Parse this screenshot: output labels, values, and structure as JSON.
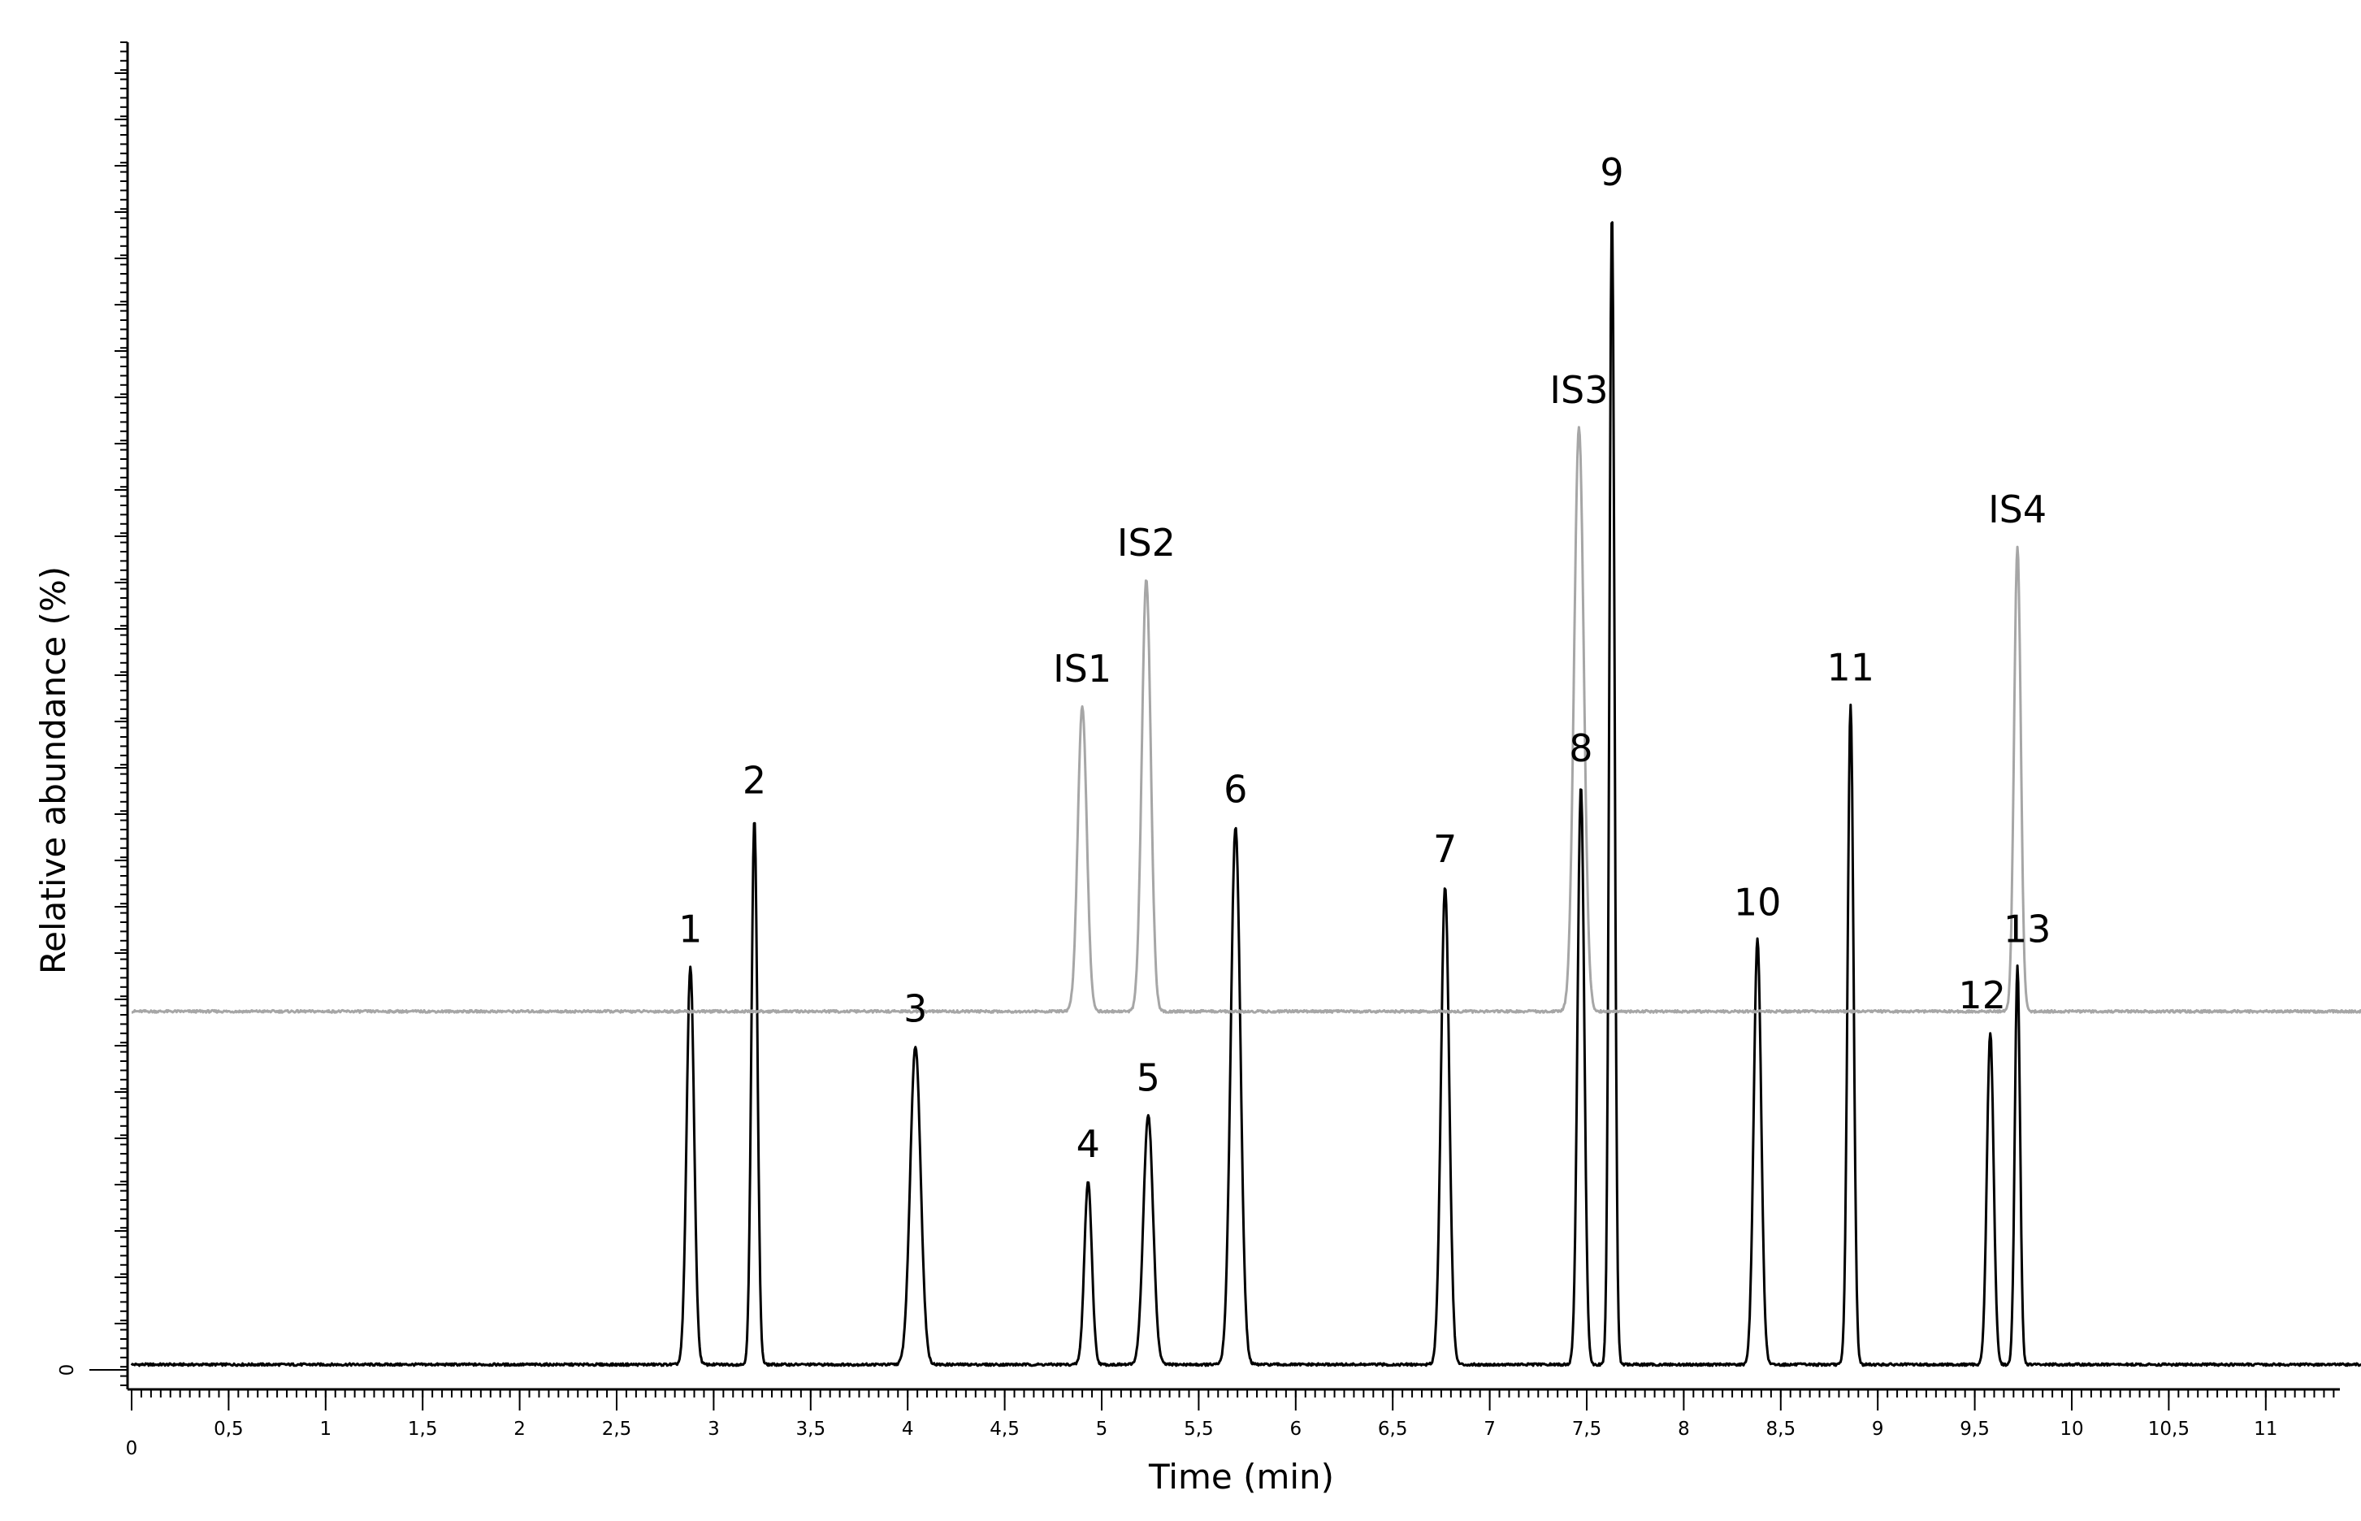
{
  "chart_data": {
    "type": "line",
    "title": "",
    "xlabel": "Time (min)",
    "ylabel": "Relative abundance (%)",
    "xlim": [
      0,
      11.5
    ],
    "ylim": [
      0,
      1
    ],
    "x_tick_labels": [
      "0",
      "0,5",
      "1",
      "1,5",
      "2",
      "2,5",
      "3",
      "3,5",
      "4",
      "4,5",
      "5",
      "5,5",
      "6",
      "6,5",
      "7",
      "7,5",
      "8",
      "8,5",
      "9",
      "9,5",
      "10",
      "10,5",
      "11"
    ],
    "y_tick_labels": [
      "0"
    ],
    "grid": false,
    "legend": "none",
    "series": [
      {
        "color": "#000000",
        "baseline": 0.004,
        "peaks": [
          {
            "label": "1",
            "rt": 2.88,
            "height": 0.3,
            "width": 0.05
          },
          {
            "label": "2",
            "rt": 3.21,
            "height": 0.412,
            "width": 0.04
          },
          {
            "label": "3",
            "rt": 4.04,
            "height": 0.24,
            "width": 0.07
          },
          {
            "label": "4",
            "rt": 4.93,
            "height": 0.138,
            "width": 0.05
          },
          {
            "label": "5",
            "rt": 5.24,
            "height": 0.188,
            "width": 0.065
          },
          {
            "label": "6",
            "rt": 5.69,
            "height": 0.405,
            "width": 0.065
          },
          {
            "label": "7",
            "rt": 6.77,
            "height": 0.36,
            "width": 0.055
          },
          {
            "label": "8",
            "rt": 7.47,
            "height": 0.436,
            "width": 0.045
          },
          {
            "label": "9",
            "rt": 7.63,
            "height": 0.87,
            "width": 0.035
          },
          {
            "label": "10",
            "rt": 8.38,
            "height": 0.32,
            "width": 0.05
          },
          {
            "label": "11",
            "rt": 8.86,
            "height": 0.497,
            "width": 0.04
          },
          {
            "label": "12",
            "rt": 9.58,
            "height": 0.25,
            "width": 0.045
          },
          {
            "label": "13",
            "rt": 9.72,
            "height": 0.3,
            "width": 0.035
          }
        ]
      },
      {
        "color": "#a6a6a6",
        "baseline": 0.27,
        "peaks": [
          {
            "label": "IS1",
            "rt": 4.9,
            "height": 0.23,
            "width": 0.06
          },
          {
            "label": "IS2",
            "rt": 5.23,
            "height": 0.325,
            "width": 0.06
          },
          {
            "label": "IS3",
            "rt": 7.46,
            "height": 0.44,
            "width": 0.065
          },
          {
            "label": "IS4",
            "rt": 9.72,
            "height": 0.35,
            "width": 0.045
          }
        ]
      }
    ]
  }
}
